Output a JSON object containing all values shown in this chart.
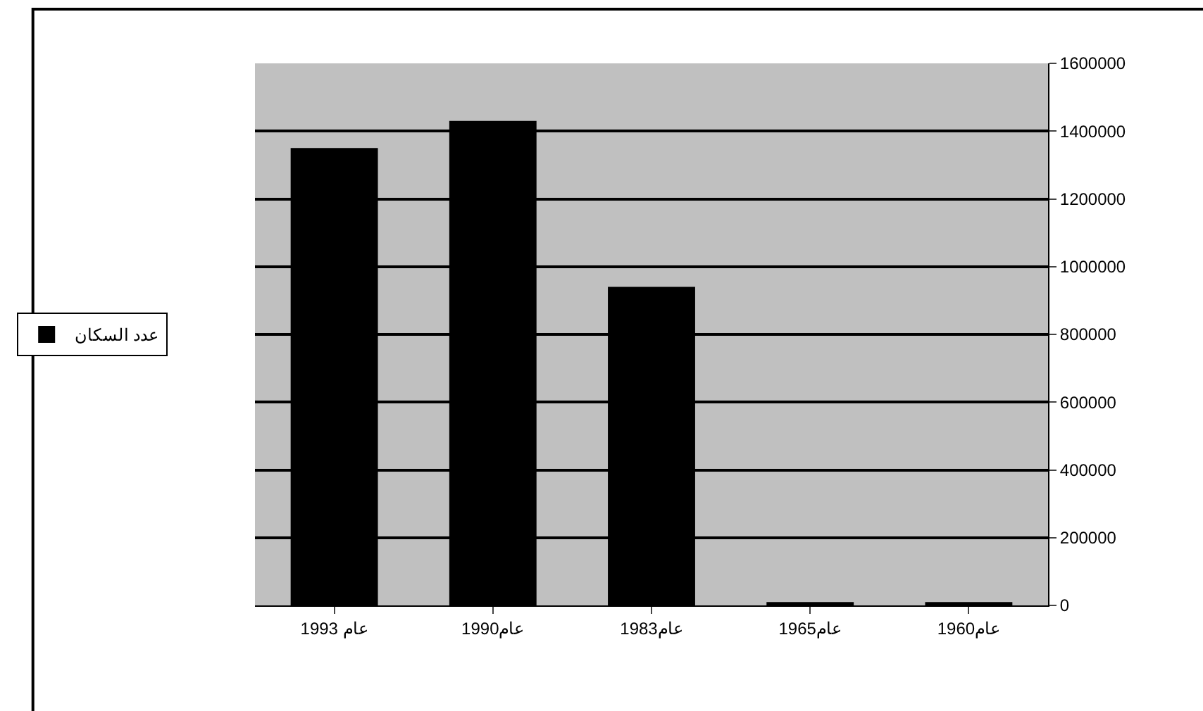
{
  "chart_data": {
    "type": "bar",
    "categories": [
      "عام 1993",
      "عام1990",
      "عام1983",
      "عام1965",
      "عام1960"
    ],
    "series": [
      {
        "name": "عدد السكان",
        "color": "#000000",
        "values": [
          1350000,
          1430000,
          940000,
          10000,
          10000
        ]
      }
    ],
    "ylim": [
      0,
      1600000
    ],
    "yticks": [
      0,
      200000,
      400000,
      600000,
      800000,
      1000000,
      1200000,
      1400000,
      1600000
    ],
    "grid": "y",
    "legend": "left"
  }
}
